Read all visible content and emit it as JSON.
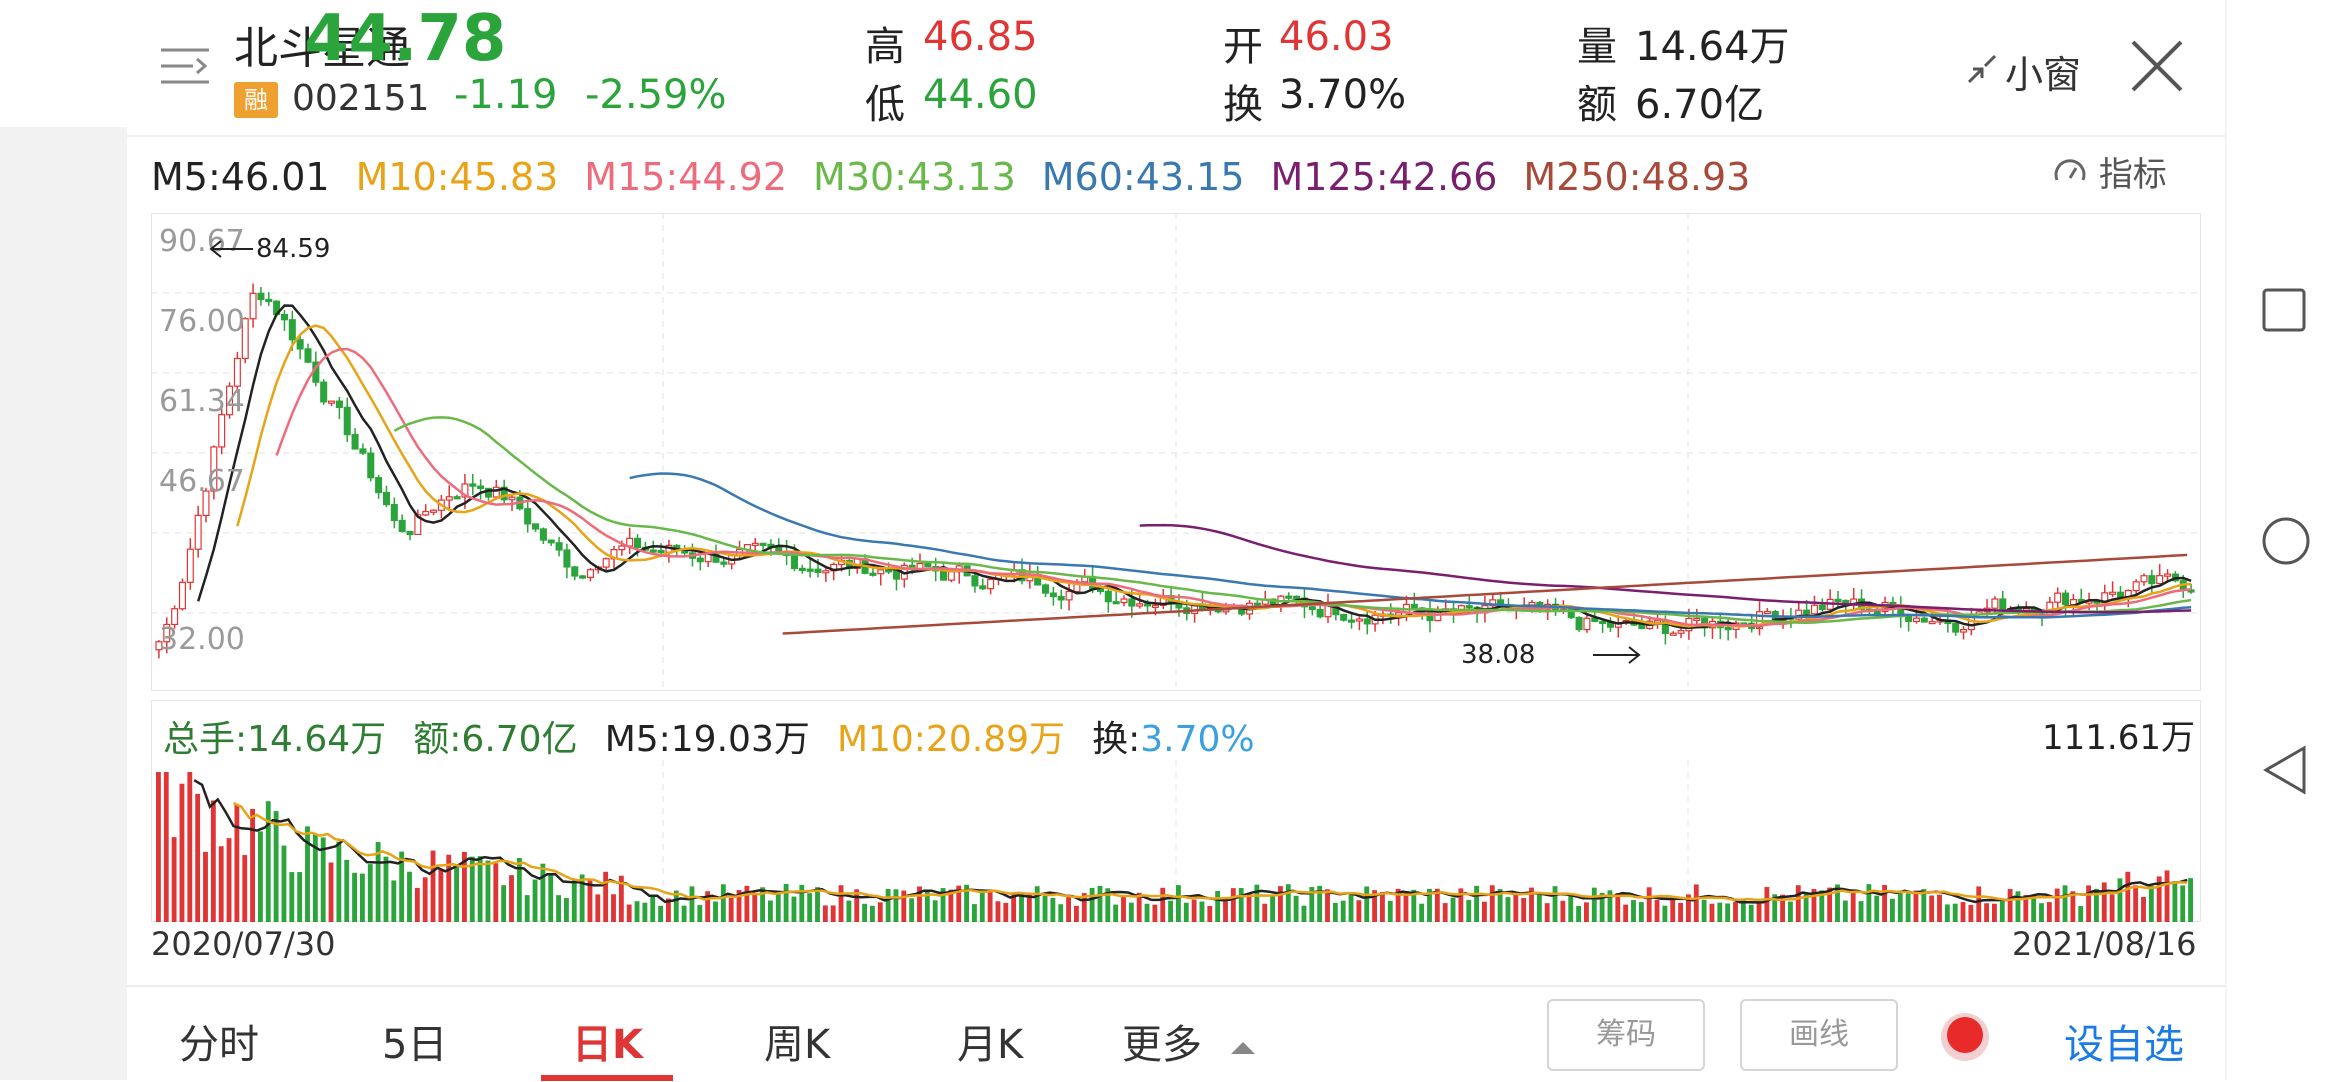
{
  "header": {
    "stock_name": "北斗星通",
    "price": "44.78",
    "margin_badge": "融",
    "code": "002151",
    "change": "-1.19",
    "change_pct": "-2.59%",
    "high_label": "高",
    "high": "46.85",
    "low_label": "低",
    "low": "44.60",
    "open_label": "开",
    "open": "46.03",
    "turnover_label": "换",
    "turnover": "3.70%",
    "volume_label": "量",
    "volume": "14.64万",
    "amount_label": "额",
    "amount": "6.70亿",
    "small_window": "小窗"
  },
  "ma_legend": [
    {
      "text": "M5:46.01",
      "color": "#222222"
    },
    {
      "text": "M10:45.83",
      "color": "#e8a317"
    },
    {
      "text": "M15:44.92",
      "color": "#ee6b7c"
    },
    {
      "text": "M30:43.13",
      "color": "#69b84a"
    },
    {
      "text": "M60:43.15",
      "color": "#3a78b0"
    },
    {
      "text": "M125:42.66",
      "color": "#7a1f6e"
    },
    {
      "text": "M250:48.93",
      "color": "#a84a3a"
    }
  ],
  "indicator_label": "指标",
  "price_axis": {
    "ticks": [
      "90.67",
      "76.00",
      "61.34",
      "46.67",
      "32.00"
    ]
  },
  "annotations": {
    "high": "84.59",
    "low": "38.08"
  },
  "volume_panel": {
    "total": "总手:14.64万",
    "amount": "额:6.70亿",
    "m5": "M5:19.03万",
    "m10": "M10:20.89万",
    "turnover_label": "换:",
    "turnover": "3.70%",
    "max": "111.61万"
  },
  "dates": {
    "start": "2020/07/30",
    "end": "2021/08/16"
  },
  "tabs": {
    "fenshi": "分时",
    "five_day": "5日",
    "day_k": "日K",
    "week_k": "周K",
    "month_k": "月K",
    "more": "更多",
    "chip": "筹码",
    "draw": "画线",
    "add_watch": "设自选"
  },
  "colors": {
    "up": "#e03535",
    "down": "#2aa43b",
    "accent_blue": "#1a7be6"
  }
}
